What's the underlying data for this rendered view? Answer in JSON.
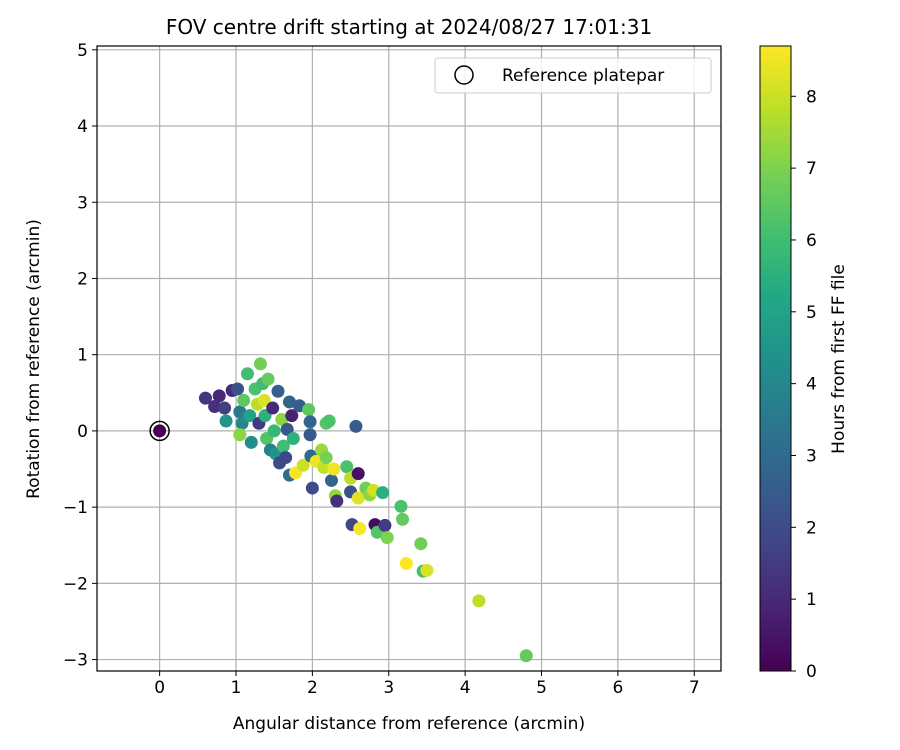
{
  "chart_data": {
    "type": "scatter",
    "title": "FOV centre drift starting at 2024/08/27 17:01:31",
    "xlabel": "Angular distance from reference (arcmin)",
    "ylabel": "Rotation from reference (arcmin)",
    "xlim": [
      -0.82,
      7.35
    ],
    "ylim": [
      -3.15,
      5.05
    ],
    "xticks": [
      0,
      1,
      2,
      3,
      4,
      5,
      6,
      7
    ],
    "yticks": [
      -3,
      -2,
      -1,
      0,
      1,
      2,
      3,
      4,
      5
    ],
    "grid": true,
    "legend": {
      "placement": "top-right",
      "entries": [
        "Reference platepar"
      ]
    },
    "reference": {
      "x": 0,
      "y": 0,
      "h": 0
    },
    "colorbar": {
      "label": "Hours from first FF file",
      "colormap": "viridis",
      "range": [
        0,
        8.7
      ],
      "ticks": [
        0,
        1,
        2,
        3,
        4,
        5,
        6,
        7,
        8
      ]
    },
    "points": [
      {
        "x": 0.6,
        "y": 0.43,
        "h": 1.3
      },
      {
        "x": 0.72,
        "y": 0.32,
        "h": 1.2
      },
      {
        "x": 0.78,
        "y": 0.46,
        "h": 1.0
      },
      {
        "x": 0.85,
        "y": 0.3,
        "h": 1.6
      },
      {
        "x": 0.87,
        "y": 0.13,
        "h": 4.5
      },
      {
        "x": 0.95,
        "y": 0.53,
        "h": 1.0
      },
      {
        "x": 1.02,
        "y": 0.55,
        "h": 2.2
      },
      {
        "x": 1.05,
        "y": 0.25,
        "h": 3.5
      },
      {
        "x": 1.08,
        "y": 0.1,
        "h": 4.0
      },
      {
        "x": 1.05,
        "y": -0.05,
        "h": 7.2
      },
      {
        "x": 1.1,
        "y": 0.4,
        "h": 6.5
      },
      {
        "x": 1.15,
        "y": 0.75,
        "h": 6.0
      },
      {
        "x": 1.18,
        "y": 0.2,
        "h": 5.0
      },
      {
        "x": 1.2,
        "y": -0.15,
        "h": 4.2
      },
      {
        "x": 1.25,
        "y": 0.55,
        "h": 6.2
      },
      {
        "x": 1.28,
        "y": 0.35,
        "h": 7.8
      },
      {
        "x": 1.3,
        "y": 0.1,
        "h": 1.5
      },
      {
        "x": 1.32,
        "y": 0.88,
        "h": 6.8
      },
      {
        "x": 1.35,
        "y": 0.62,
        "h": 6.0
      },
      {
        "x": 1.37,
        "y": 0.4,
        "h": 8.2
      },
      {
        "x": 1.38,
        "y": 0.2,
        "h": 5.5
      },
      {
        "x": 1.4,
        "y": -0.1,
        "h": 6.3
      },
      {
        "x": 1.42,
        "y": 0.68,
        "h": 6.6
      },
      {
        "x": 1.45,
        "y": -0.25,
        "h": 3.8
      },
      {
        "x": 1.48,
        "y": 0.3,
        "h": 1.0
      },
      {
        "x": 1.5,
        "y": 0.0,
        "h": 5.8
      },
      {
        "x": 1.52,
        "y": -0.3,
        "h": 4.4
      },
      {
        "x": 1.55,
        "y": 0.52,
        "h": 2.6
      },
      {
        "x": 1.57,
        "y": -0.42,
        "h": 2.0
      },
      {
        "x": 1.6,
        "y": 0.15,
        "h": 7.2
      },
      {
        "x": 1.62,
        "y": -0.2,
        "h": 6.0
      },
      {
        "x": 1.65,
        "y": -0.35,
        "h": 1.8
      },
      {
        "x": 1.67,
        "y": 0.02,
        "h": 2.4
      },
      {
        "x": 1.7,
        "y": 0.38,
        "h": 2.8
      },
      {
        "x": 1.7,
        "y": -0.58,
        "h": 3.0
      },
      {
        "x": 1.73,
        "y": 0.2,
        "h": 0.8
      },
      {
        "x": 1.75,
        "y": -0.1,
        "h": 5.6
      },
      {
        "x": 1.78,
        "y": -0.55,
        "h": 8.6
      },
      {
        "x": 1.83,
        "y": 0.33,
        "h": 2.5
      },
      {
        "x": 1.88,
        "y": -0.45,
        "h": 8.0
      },
      {
        "x": 1.95,
        "y": 0.28,
        "h": 6.5
      },
      {
        "x": 1.98,
        "y": -0.33,
        "h": 3.0
      },
      {
        "x": 1.97,
        "y": 0.12,
        "h": 2.9
      },
      {
        "x": 1.97,
        "y": -0.05,
        "h": 2.5
      },
      {
        "x": 2.0,
        "y": -0.75,
        "h": 2.0
      },
      {
        "x": 2.05,
        "y": -0.4,
        "h": 8.5
      },
      {
        "x": 2.12,
        "y": -0.25,
        "h": 7.4
      },
      {
        "x": 2.15,
        "y": -0.48,
        "h": 7.9
      },
      {
        "x": 2.18,
        "y": 0.1,
        "h": 6.4
      },
      {
        "x": 2.18,
        "y": -0.35,
        "h": 6.9
      },
      {
        "x": 2.22,
        "y": 0.13,
        "h": 6.2
      },
      {
        "x": 2.25,
        "y": -0.65,
        "h": 2.8
      },
      {
        "x": 2.28,
        "y": -0.5,
        "h": 8.5
      },
      {
        "x": 2.3,
        "y": -0.85,
        "h": 7.3
      },
      {
        "x": 2.32,
        "y": -0.92,
        "h": 1.2
      },
      {
        "x": 2.45,
        "y": -0.47,
        "h": 6.2
      },
      {
        "x": 2.5,
        "y": -0.62,
        "h": 7.8
      },
      {
        "x": 2.5,
        "y": -0.8,
        "h": 2.2
      },
      {
        "x": 2.52,
        "y": -1.23,
        "h": 1.8
      },
      {
        "x": 2.57,
        "y": 0.06,
        "h": 2.5
      },
      {
        "x": 2.6,
        "y": -0.56,
        "h": 0.4
      },
      {
        "x": 2.6,
        "y": -0.88,
        "h": 8.3
      },
      {
        "x": 2.62,
        "y": -1.28,
        "h": 8.6
      },
      {
        "x": 2.7,
        "y": -0.75,
        "h": 6.8
      },
      {
        "x": 2.75,
        "y": -0.84,
        "h": 7.2
      },
      {
        "x": 2.8,
        "y": -0.78,
        "h": 8.1
      },
      {
        "x": 2.82,
        "y": -1.23,
        "h": 0.3
      },
      {
        "x": 2.85,
        "y": -1.33,
        "h": 6.3
      },
      {
        "x": 2.92,
        "y": -0.81,
        "h": 5.5
      },
      {
        "x": 2.95,
        "y": -1.24,
        "h": 1.5
      },
      {
        "x": 2.98,
        "y": -1.4,
        "h": 7.0
      },
      {
        "x": 3.16,
        "y": -0.99,
        "h": 6.2
      },
      {
        "x": 3.18,
        "y": -1.16,
        "h": 6.6
      },
      {
        "x": 3.23,
        "y": -1.74,
        "h": 8.7
      },
      {
        "x": 3.42,
        "y": -1.48,
        "h": 6.8
      },
      {
        "x": 3.45,
        "y": -1.84,
        "h": 6.0
      },
      {
        "x": 3.5,
        "y": -1.83,
        "h": 8.2
      },
      {
        "x": 4.18,
        "y": -2.23,
        "h": 7.8
      },
      {
        "x": 4.8,
        "y": -2.95,
        "h": 6.6
      }
    ]
  }
}
